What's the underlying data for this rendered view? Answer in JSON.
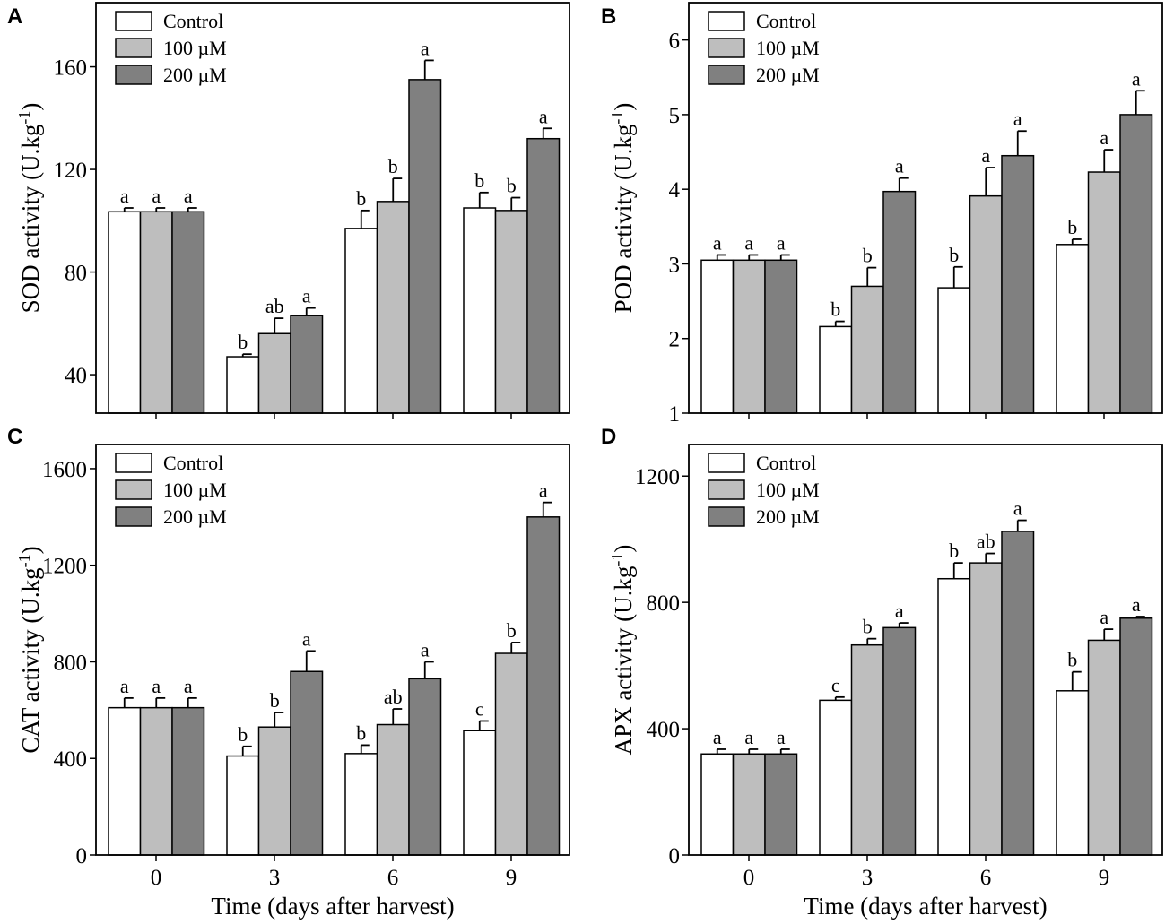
{
  "figure": {
    "xlabel_shared": "Time (days after harvest)"
  },
  "legend_labels": [
    "Control",
    "100 µM",
    "200 µM"
  ],
  "colors": {
    "Control": "#ffffff",
    "100 µM": "#bebebe",
    "200 µM": "#808080",
    "stroke": "#000000"
  },
  "chart_data": [
    {
      "panel": "A",
      "type": "bar",
      "ylabel": "SOD activity (U.kg",
      "ylabel_sup": "-1",
      "ylabel_end": ")",
      "xlabel": "",
      "categories": [
        "0",
        "3",
        "6",
        "9"
      ],
      "ylim": [
        25,
        185
      ],
      "yticks": [
        40,
        80,
        120,
        160
      ],
      "legend_position": "top-left",
      "series": [
        {
          "name": "Control",
          "values": [
            103.5,
            47,
            97,
            105
          ],
          "errors": [
            1.5,
            1,
            7,
            6
          ],
          "labels": [
            "a",
            "b",
            "b",
            "b"
          ]
        },
        {
          "name": "100 µM",
          "values": [
            103.5,
            56,
            107.5,
            104
          ],
          "errors": [
            1.5,
            6,
            9,
            5
          ],
          "labels": [
            "a",
            "ab",
            "b",
            "b"
          ]
        },
        {
          "name": "200 µM",
          "values": [
            103.5,
            63,
            155,
            132
          ],
          "errors": [
            1.5,
            3,
            7.5,
            4
          ],
          "labels": [
            "a",
            "a",
            "a",
            "a"
          ]
        }
      ]
    },
    {
      "panel": "B",
      "type": "bar",
      "ylabel": "POD activity (U.kg",
      "ylabel_sup": "-1",
      "ylabel_end": ")",
      "xlabel": "",
      "categories": [
        "0",
        "3",
        "6",
        "9"
      ],
      "ylim": [
        1,
        6.5
      ],
      "yticks": [
        1,
        2,
        3,
        4,
        5,
        6
      ],
      "legend_position": "top-left",
      "series": [
        {
          "name": "Control",
          "values": [
            3.05,
            2.16,
            2.68,
            3.26
          ],
          "errors": [
            0.07,
            0.07,
            0.28,
            0.07
          ],
          "labels": [
            "a",
            "b",
            "b",
            "b"
          ]
        },
        {
          "name": "100 µM",
          "values": [
            3.05,
            2.7,
            3.91,
            4.23
          ],
          "errors": [
            0.07,
            0.25,
            0.38,
            0.3
          ],
          "labels": [
            "a",
            "b",
            "a",
            "a"
          ]
        },
        {
          "name": "200 µM",
          "values": [
            3.05,
            3.97,
            4.45,
            5.0
          ],
          "errors": [
            0.07,
            0.18,
            0.33,
            0.32
          ],
          "labels": [
            "a",
            "a",
            "a",
            "a"
          ]
        }
      ]
    },
    {
      "panel": "C",
      "type": "bar",
      "ylabel": "CAT activity (U.kg",
      "ylabel_sup": "-1",
      "ylabel_end": ")",
      "xlabel": "Time (days after harvest)",
      "categories": [
        "0",
        "3",
        "6",
        "9"
      ],
      "ylim": [
        0,
        1700
      ],
      "yticks": [
        0,
        400,
        800,
        1200,
        1600
      ],
      "legend_position": "top-left",
      "series": [
        {
          "name": "Control",
          "values": [
            610,
            410,
            420,
            515
          ],
          "errors": [
            40,
            40,
            35,
            40
          ],
          "labels": [
            "a",
            "b",
            "b",
            "c"
          ]
        },
        {
          "name": "100 µM",
          "values": [
            610,
            530,
            540,
            835
          ],
          "errors": [
            40,
            60,
            65,
            45
          ],
          "labels": [
            "a",
            "b",
            "ab",
            "b"
          ]
        },
        {
          "name": "200 µM",
          "values": [
            610,
            760,
            730,
            1400
          ],
          "errors": [
            40,
            85,
            70,
            60
          ],
          "labels": [
            "a",
            "a",
            "a",
            "a"
          ]
        }
      ]
    },
    {
      "panel": "D",
      "type": "bar",
      "ylabel": "APX activity (U.kg",
      "ylabel_sup": "-1",
      "ylabel_end": ")",
      "xlabel": "Time (days after harvest)",
      "categories": [
        "0",
        "3",
        "6",
        "9"
      ],
      "ylim": [
        0,
        1300
      ],
      "yticks": [
        0,
        400,
        800,
        1200
      ],
      "legend_position": "top-left",
      "series": [
        {
          "name": "Control",
          "values": [
            320,
            490,
            875,
            520
          ],
          "errors": [
            15,
            10,
            50,
            60
          ],
          "labels": [
            "a",
            "c",
            "b",
            "b"
          ]
        },
        {
          "name": "100 µM",
          "values": [
            320,
            665,
            925,
            680
          ],
          "errors": [
            15,
            20,
            30,
            35
          ],
          "labels": [
            "a",
            "b",
            "ab",
            "a"
          ]
        },
        {
          "name": "200 µM",
          "values": [
            320,
            720,
            1025,
            750
          ],
          "errors": [
            15,
            15,
            35,
            5
          ],
          "labels": [
            "a",
            "a",
            "a",
            "a"
          ]
        }
      ]
    }
  ]
}
